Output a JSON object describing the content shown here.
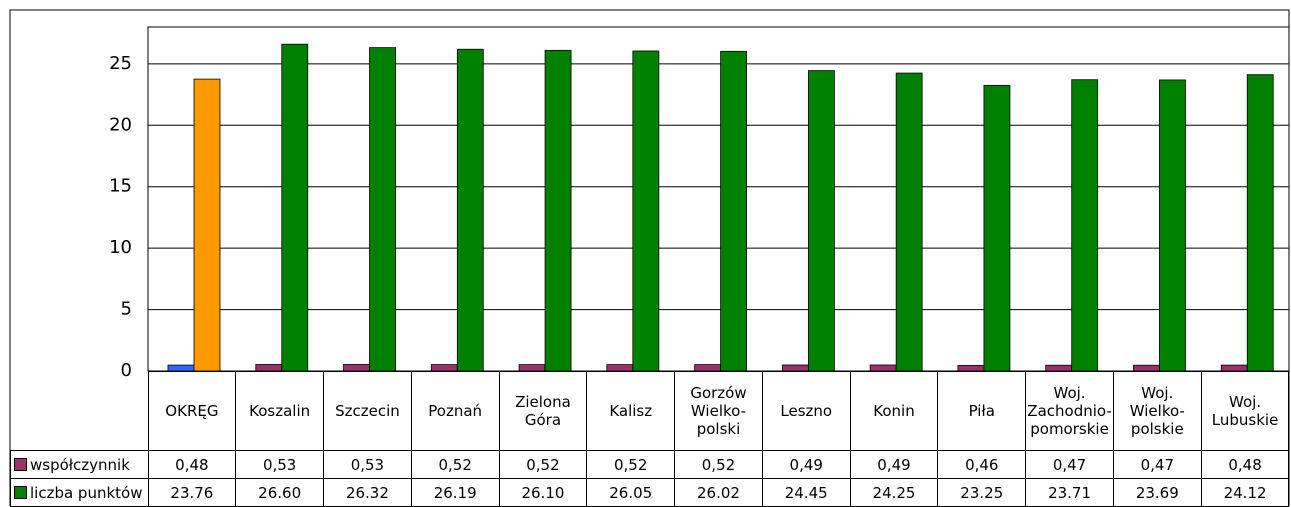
{
  "chart_data": {
    "type": "bar",
    "categories": [
      "OKRĘG",
      "Koszalin",
      "Szczecin",
      "Poznań",
      "Zielona\nGóra",
      "Kalisz",
      "Gorzów\nWielko-\npolski",
      "Leszno",
      "Konin",
      "Piła",
      "Woj.\nZachodnio-\npomorskie",
      "Woj.\nWielko-\npolskie",
      "Woj.\nLubuskie"
    ],
    "series": [
      {
        "name": "współczynnik",
        "color": "#993366",
        "colors": [
          "#3366ff",
          "#993366",
          "#993366",
          "#993366",
          "#993366",
          "#993366",
          "#993366",
          "#993366",
          "#993366",
          "#993366",
          "#993366",
          "#993366",
          "#993366"
        ],
        "values": [
          0.48,
          0.53,
          0.53,
          0.52,
          0.52,
          0.52,
          0.52,
          0.49,
          0.49,
          0.46,
          0.47,
          0.47,
          0.48
        ],
        "value_labels": [
          "0,48",
          "0,53",
          "0,53",
          "0,52",
          "0,52",
          "0,52",
          "0,52",
          "0,49",
          "0,49",
          "0,46",
          "0,47",
          "0,47",
          "0,48"
        ]
      },
      {
        "name": "liczba punktów",
        "color": "#008000",
        "colors": [
          "#ff9900",
          "#008000",
          "#008000",
          "#008000",
          "#008000",
          "#008000",
          "#008000",
          "#008000",
          "#008000",
          "#008000",
          "#008000",
          "#008000",
          "#008000"
        ],
        "values": [
          23.76,
          26.6,
          26.32,
          26.19,
          26.1,
          26.05,
          26.02,
          24.45,
          24.25,
          23.25,
          23.71,
          23.69,
          24.12
        ],
        "value_labels": [
          "23.76",
          "26.60",
          "26.32",
          "26.19",
          "26.10",
          "26.05",
          "26.02",
          "24.45",
          "24.25",
          "23.25",
          "23.71",
          "23.69",
          "24.12"
        ]
      }
    ],
    "ylim": [
      0,
      28
    ],
    "yticks": [
      0,
      5,
      10,
      15,
      20,
      25
    ],
    "grid": true
  }
}
